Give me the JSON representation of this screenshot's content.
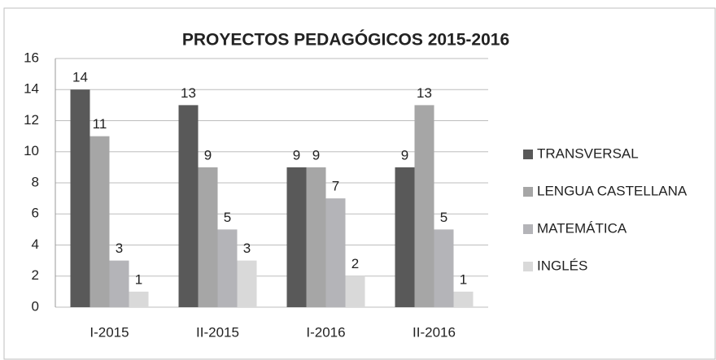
{
  "chart_data": {
    "type": "bar",
    "title": "PROYECTOS PEDAGÓGICOS 2015-2016",
    "categories": [
      "I-2015",
      "II-2015",
      "I-2016",
      "II-2016"
    ],
    "series": [
      {
        "name": "TRANSVERSAL",
        "color": "#595959",
        "values": [
          14,
          13,
          9,
          9
        ]
      },
      {
        "name": "LENGUA CASTELLANA",
        "color": "#a6a6a6",
        "values": [
          11,
          9,
          9,
          13
        ]
      },
      {
        "name": "MATEMÁTICA",
        "color": "#b4b4b8",
        "values": [
          3,
          5,
          7,
          5
        ]
      },
      {
        "name": "INGLÉS",
        "color": "#d9d9d9",
        "values": [
          1,
          3,
          2,
          1
        ]
      }
    ],
    "ylim": [
      0,
      16
    ],
    "yticks": [
      0,
      2,
      4,
      6,
      8,
      10,
      12,
      14,
      16
    ],
    "grid": true,
    "legend": "right"
  }
}
